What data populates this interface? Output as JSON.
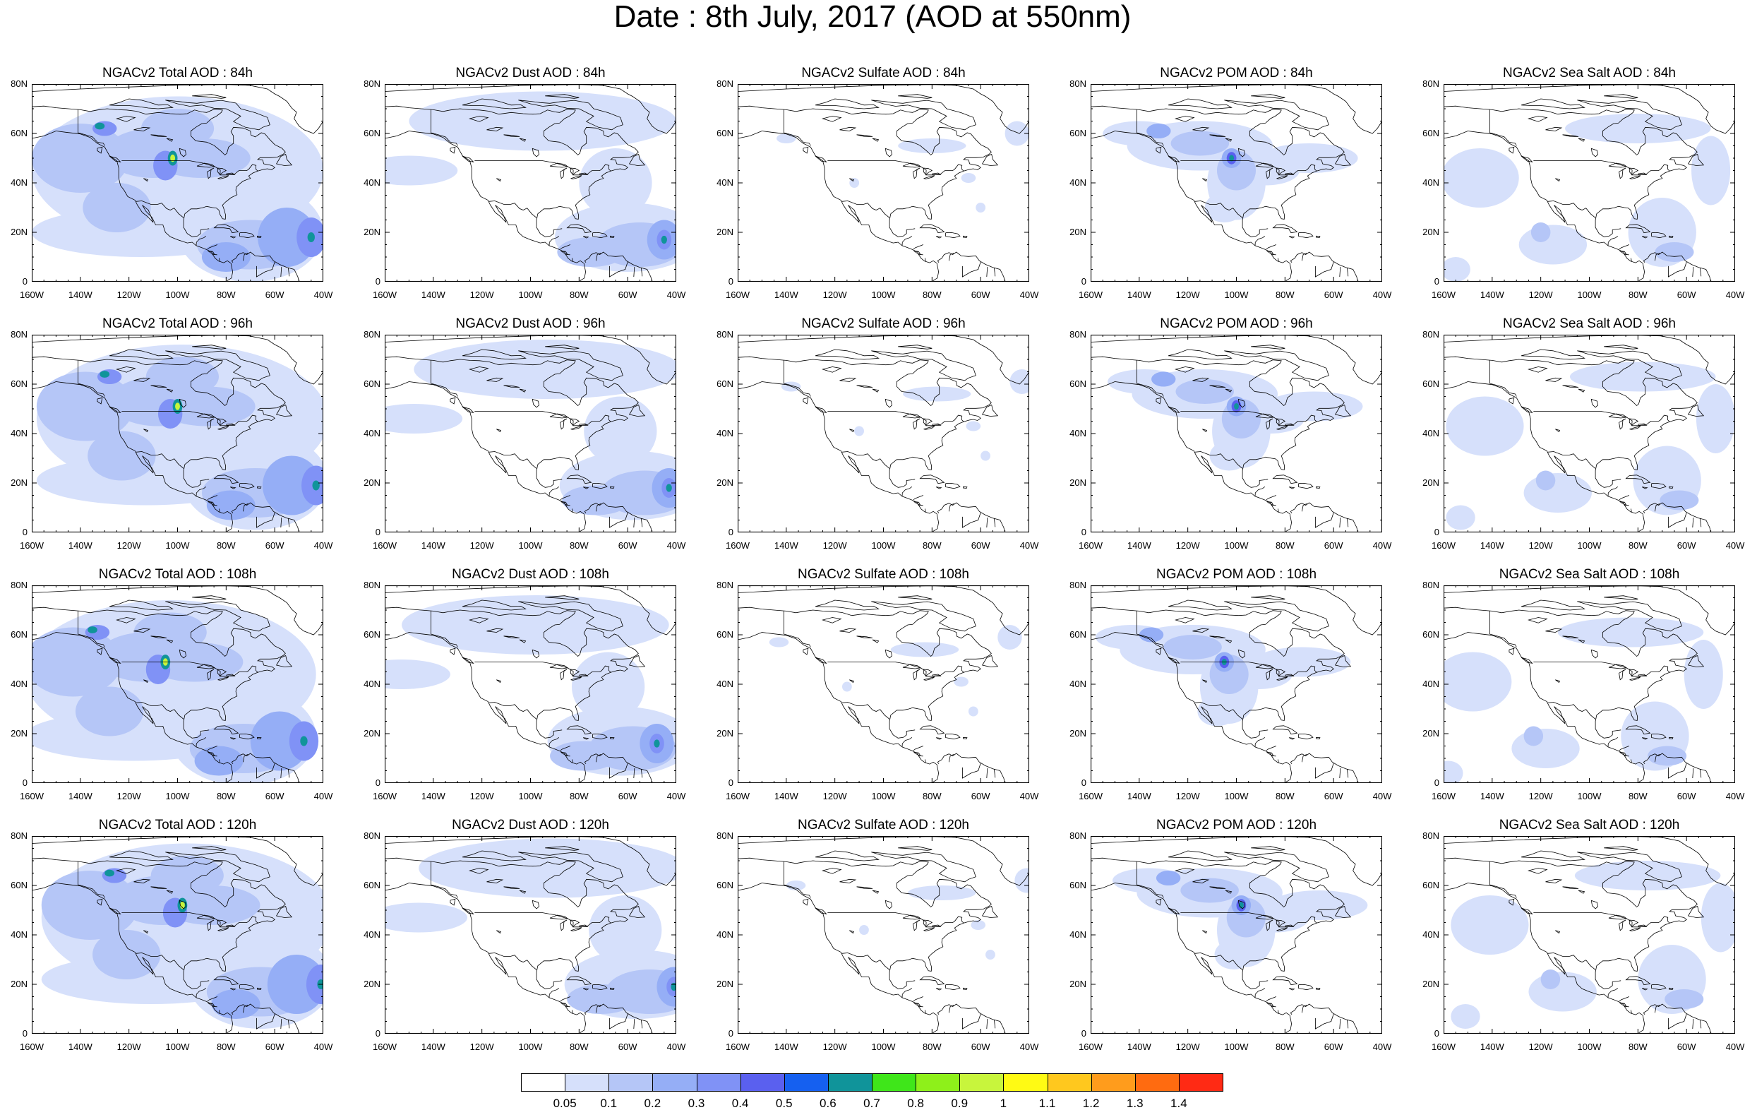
{
  "title": "Date : 8th July, 2017 (AOD at 550nm)",
  "latitude_ticks": [
    "80N",
    "60N",
    "40N",
    "20N",
    "0"
  ],
  "longitude_ticks": [
    "160W",
    "140W",
    "120W",
    "100W",
    "80W",
    "60W",
    "40W"
  ],
  "panels": [
    {
      "title": "NGACv2 Total AOD : 84h",
      "product": "total",
      "lead": "84h"
    },
    {
      "title": "NGACv2 Dust AOD : 84h",
      "product": "dust",
      "lead": "84h"
    },
    {
      "title": "NGACv2 Sulfate AOD : 84h",
      "product": "sulfate",
      "lead": "84h"
    },
    {
      "title": "NGACv2 POM AOD : 84h",
      "product": "pom",
      "lead": "84h"
    },
    {
      "title": "NGACv2 Sea Salt AOD : 84h",
      "product": "seasalt",
      "lead": "84h"
    },
    {
      "title": "NGACv2 Total AOD : 96h",
      "product": "total",
      "lead": "96h"
    },
    {
      "title": "NGACv2 Dust AOD : 96h",
      "product": "dust",
      "lead": "96h"
    },
    {
      "title": "NGACv2 Sulfate AOD : 96h",
      "product": "sulfate",
      "lead": "96h"
    },
    {
      "title": "NGACv2 POM AOD : 96h",
      "product": "pom",
      "lead": "96h"
    },
    {
      "title": "NGACv2 Sea Salt AOD : 96h",
      "product": "seasalt",
      "lead": "96h"
    },
    {
      "title": "NGACv2 Total AOD : 108h",
      "product": "total",
      "lead": "108h"
    },
    {
      "title": "NGACv2 Dust AOD : 108h",
      "product": "dust",
      "lead": "108h"
    },
    {
      "title": "NGACv2 Sulfate AOD : 108h",
      "product": "sulfate",
      "lead": "108h"
    },
    {
      "title": "NGACv2 POM AOD : 108h",
      "product": "pom",
      "lead": "108h"
    },
    {
      "title": "NGACv2 Sea Salt AOD : 108h",
      "product": "seasalt",
      "lead": "108h"
    },
    {
      "title": "NGACv2 Total AOD : 120h",
      "product": "total",
      "lead": "120h"
    },
    {
      "title": "NGACv2 Dust AOD : 120h",
      "product": "dust",
      "lead": "120h"
    },
    {
      "title": "NGACv2 Sulfate AOD : 120h",
      "product": "sulfate",
      "lead": "120h"
    },
    {
      "title": "NGACv2 POM AOD : 120h",
      "product": "pom",
      "lead": "120h"
    },
    {
      "title": "NGACv2 Sea Salt  AOD : 120h",
      "product": "seasalt",
      "lead": "120h"
    }
  ],
  "colorbar": {
    "labels": [
      "0.05",
      "0.1",
      "0.2",
      "0.3",
      "0.4",
      "0.5",
      "0.6",
      "0.7",
      "0.8",
      "0.9",
      "1",
      "1.1",
      "1.2",
      "1.3",
      "1.4"
    ],
    "colors": [
      "#ffffff",
      "#d6e0fb",
      "#b5c6f7",
      "#95aef6",
      "#8092f6",
      "#5a60ef",
      "#1560f0",
      "#10949a",
      "#3fe61a",
      "#8ef01a",
      "#c8f53c",
      "#fffa14",
      "#ffc81e",
      "#ff9c1c",
      "#ff6b10",
      "#ff2a14"
    ]
  }
}
